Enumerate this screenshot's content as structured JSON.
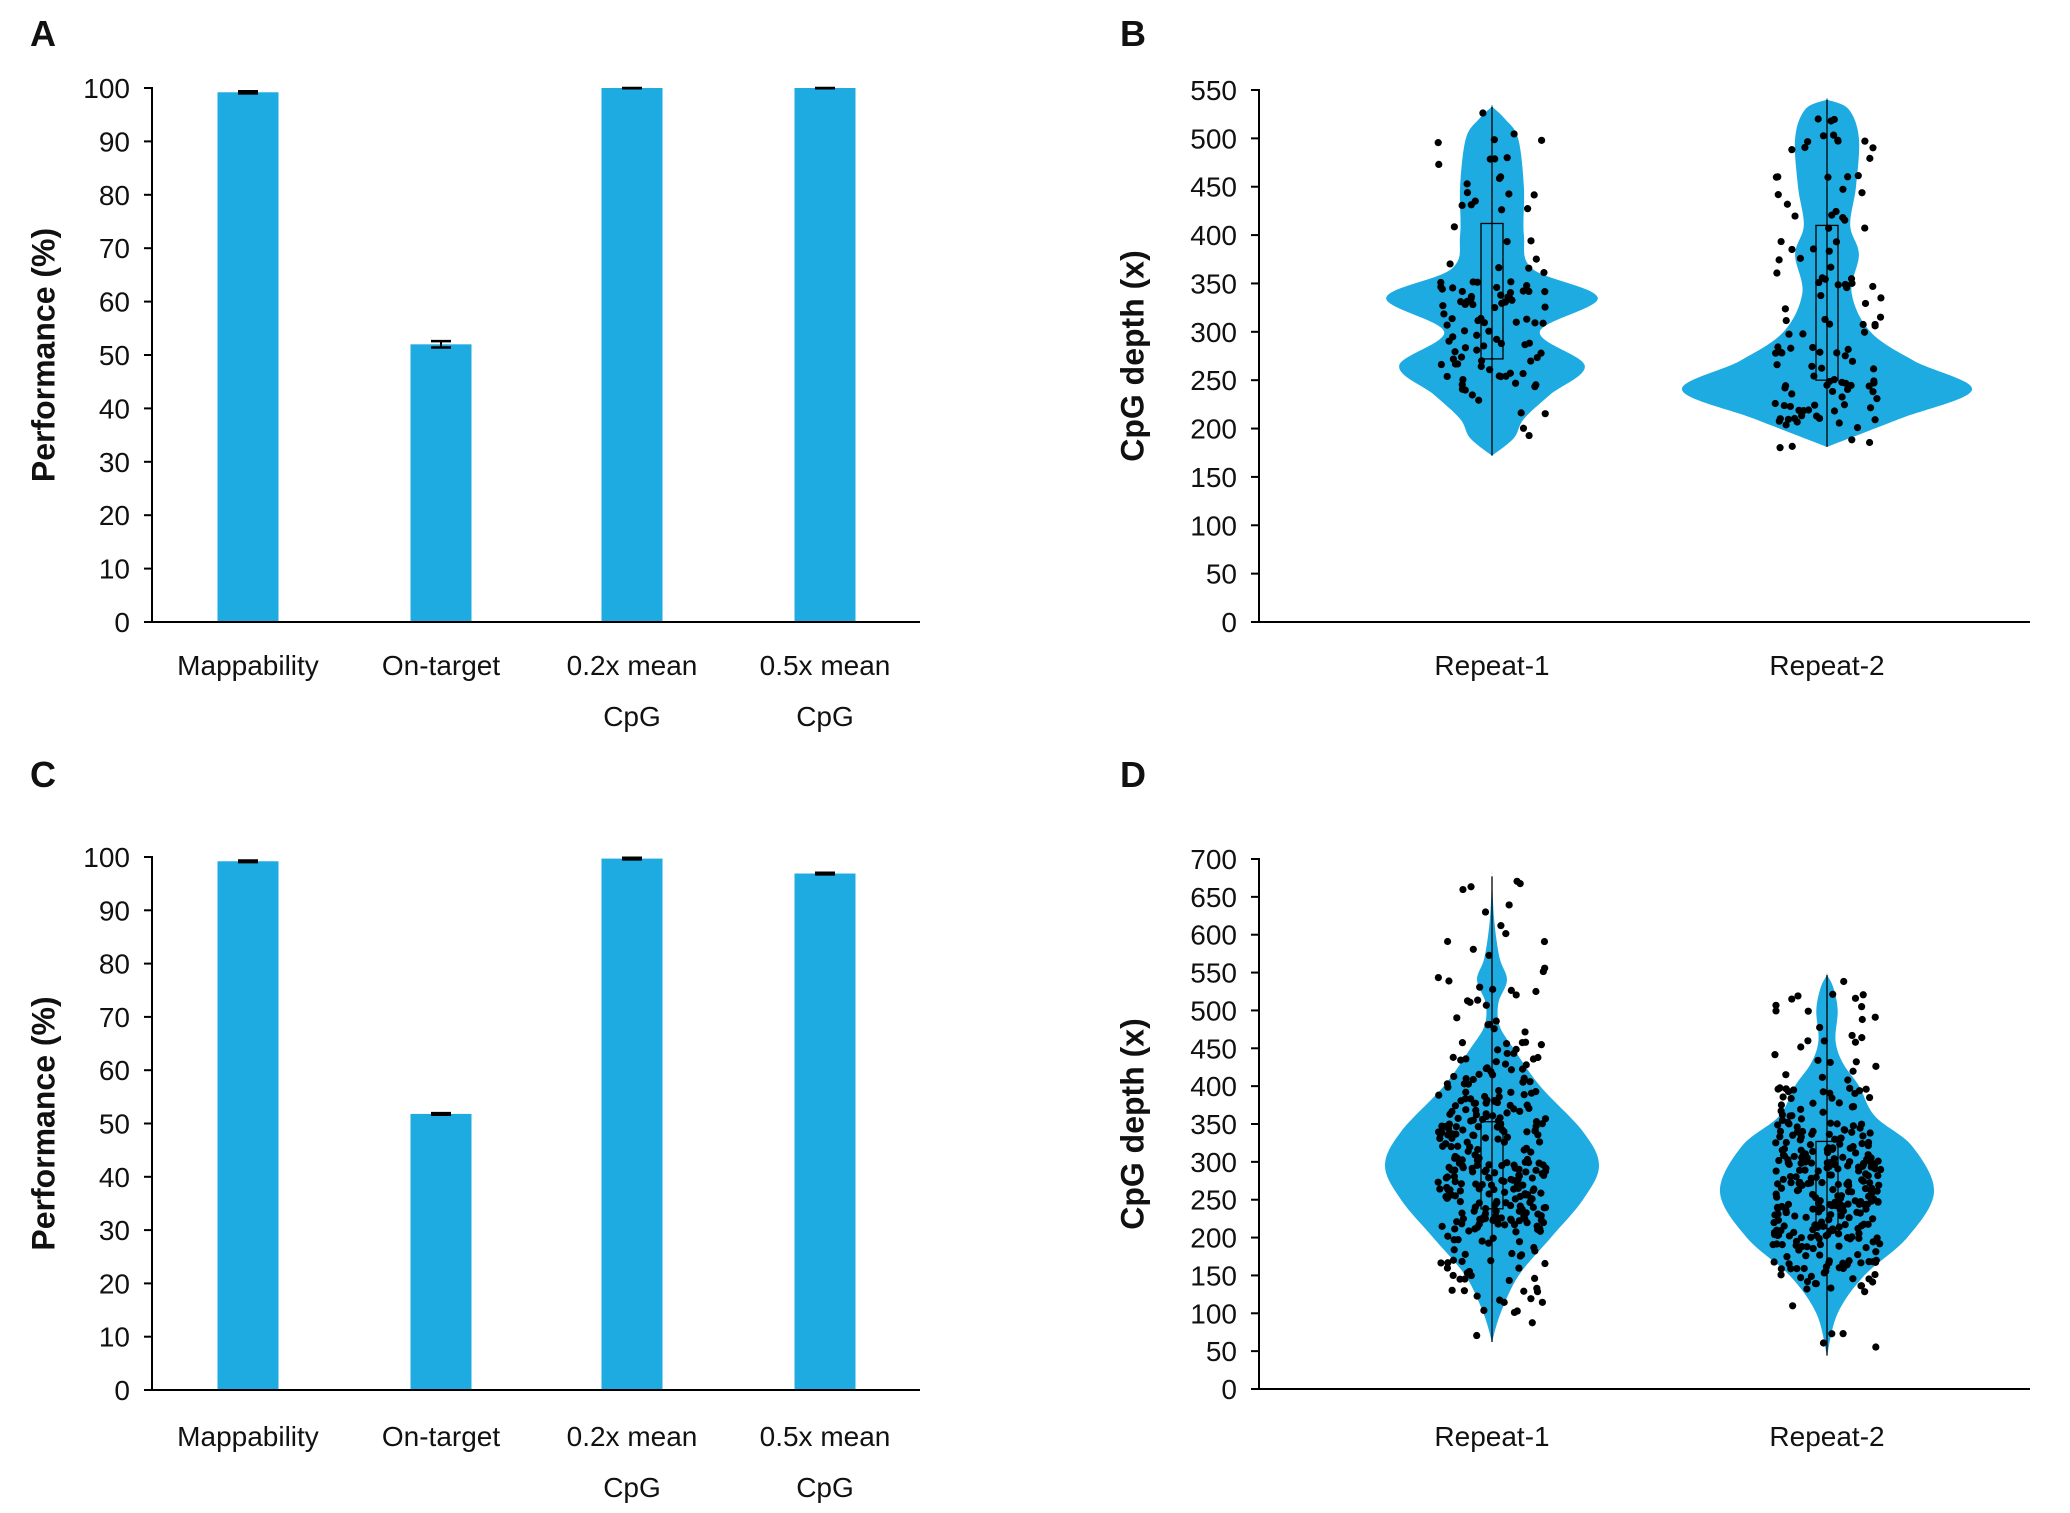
{
  "colors": {
    "bar": "#1eabe2",
    "violin": "#1eabe2",
    "point": "#000000",
    "axis": "#000000"
  },
  "chart_data": [
    {
      "panel": "A",
      "type": "bar",
      "ylabel": "Performance (%)",
      "ylim": [
        0,
        100
      ],
      "yticks": [
        "0",
        "10",
        "20",
        "30",
        "40",
        "50",
        "60",
        "70",
        "80",
        "90",
        "100"
      ],
      "categories": [
        [
          "Mappability"
        ],
        [
          "On-target"
        ],
        [
          "0.2x mean",
          "CpG"
        ],
        [
          "0.5x mean",
          "CpG"
        ]
      ],
      "values": [
        99.2,
        52.0,
        100.0,
        100.0
      ],
      "errors": [
        0.2,
        0.6,
        0.05,
        0.05
      ]
    },
    {
      "panel": "B",
      "type": "violin",
      "ylabel": "CpG depth (x)",
      "ylim": [
        0,
        550
      ],
      "yticks": [
        "0",
        "50",
        "100",
        "150",
        "200",
        "250",
        "300",
        "350",
        "400",
        "450",
        "500",
        "550"
      ],
      "categories": [
        "Repeat-1",
        "Repeat-2"
      ],
      "violins": [
        {
          "min": 172,
          "q1": 272,
          "median": 330,
          "q3": 412,
          "max": 533,
          "n_points": 110,
          "jitter_range": [
            172,
            535
          ],
          "density": [
            [
              172,
              0
            ],
            [
              190,
              0.15
            ],
            [
              210,
              0.22
            ],
            [
              235,
              0.4
            ],
            [
              265,
              0.64
            ],
            [
              300,
              0.33
            ],
            [
              335,
              0.73
            ],
            [
              365,
              0.28
            ],
            [
              400,
              0.22
            ],
            [
              450,
              0.22
            ],
            [
              500,
              0.18
            ],
            [
              520,
              0.09
            ],
            [
              533,
              0
            ]
          ]
        },
        {
          "min": 181,
          "q1": 250,
          "median": 300,
          "q3": 410,
          "max": 540,
          "n_points": 120,
          "jitter_range": [
            180,
            540
          ],
          "density": [
            [
              181,
              0
            ],
            [
              210,
              0.5
            ],
            [
              240,
              1.0
            ],
            [
              270,
              0.6
            ],
            [
              300,
              0.3
            ],
            [
              340,
              0.17
            ],
            [
              380,
              0.22
            ],
            [
              410,
              0.16
            ],
            [
              450,
              0.2
            ],
            [
              500,
              0.22
            ],
            [
              530,
              0.15
            ],
            [
              540,
              0
            ]
          ]
        }
      ]
    },
    {
      "panel": "C",
      "type": "bar",
      "ylabel": "Performance (%)",
      "ylim": [
        0,
        100
      ],
      "yticks": [
        "0",
        "10",
        "20",
        "30",
        "40",
        "50",
        "60",
        "70",
        "80",
        "90",
        "100"
      ],
      "categories": [
        [
          "Mappability"
        ],
        [
          "On-target"
        ],
        [
          "0.2x mean",
          "CpG"
        ],
        [
          "0.5x mean",
          "CpG"
        ]
      ],
      "values": [
        99.2,
        51.8,
        99.7,
        96.9
      ],
      "errors": [
        0.15,
        0.15,
        0.15,
        0.15
      ]
    },
    {
      "panel": "D",
      "type": "violin",
      "ylabel": "CpG depth (x)",
      "ylim": [
        0,
        700
      ],
      "yticks": [
        "0",
        "50",
        "100",
        "150",
        "200",
        "250",
        "300",
        "350",
        "400",
        "450",
        "500",
        "550",
        "600",
        "650",
        "700"
      ],
      "categories": [
        "Repeat-1",
        "Repeat-2"
      ],
      "violins": [
        {
          "min": 62,
          "q1": 238,
          "median": 300,
          "q3": 353,
          "max": 677,
          "n_points": 340,
          "jitter_range": [
            62,
            677
          ],
          "density": [
            [
              62,
              0
            ],
            [
              100,
              0.08
            ],
            [
              150,
              0.25
            ],
            [
              200,
              0.55
            ],
            [
              250,
              0.85
            ],
            [
              295,
              1.0
            ],
            [
              340,
              0.85
            ],
            [
              400,
              0.45
            ],
            [
              450,
              0.2
            ],
            [
              480,
              0.07
            ],
            [
              510,
              0.06
            ],
            [
              540,
              0.14
            ],
            [
              570,
              0.07
            ],
            [
              620,
              0.02
            ],
            [
              677,
              0
            ]
          ]
        },
        {
          "min": 44,
          "q1": 212,
          "median": 270,
          "q3": 327,
          "max": 547,
          "n_points": 340,
          "jitter_range": [
            44,
            547
          ],
          "density": [
            [
              44,
              0
            ],
            [
              100,
              0.1
            ],
            [
              150,
              0.35
            ],
            [
              200,
              0.75
            ],
            [
              260,
              1.0
            ],
            [
              320,
              0.8
            ],
            [
              360,
              0.45
            ],
            [
              400,
              0.3
            ],
            [
              430,
              0.15
            ],
            [
              460,
              0.08
            ],
            [
              500,
              0.1
            ],
            [
              530,
              0.06
            ],
            [
              547,
              0
            ]
          ]
        }
      ]
    }
  ]
}
